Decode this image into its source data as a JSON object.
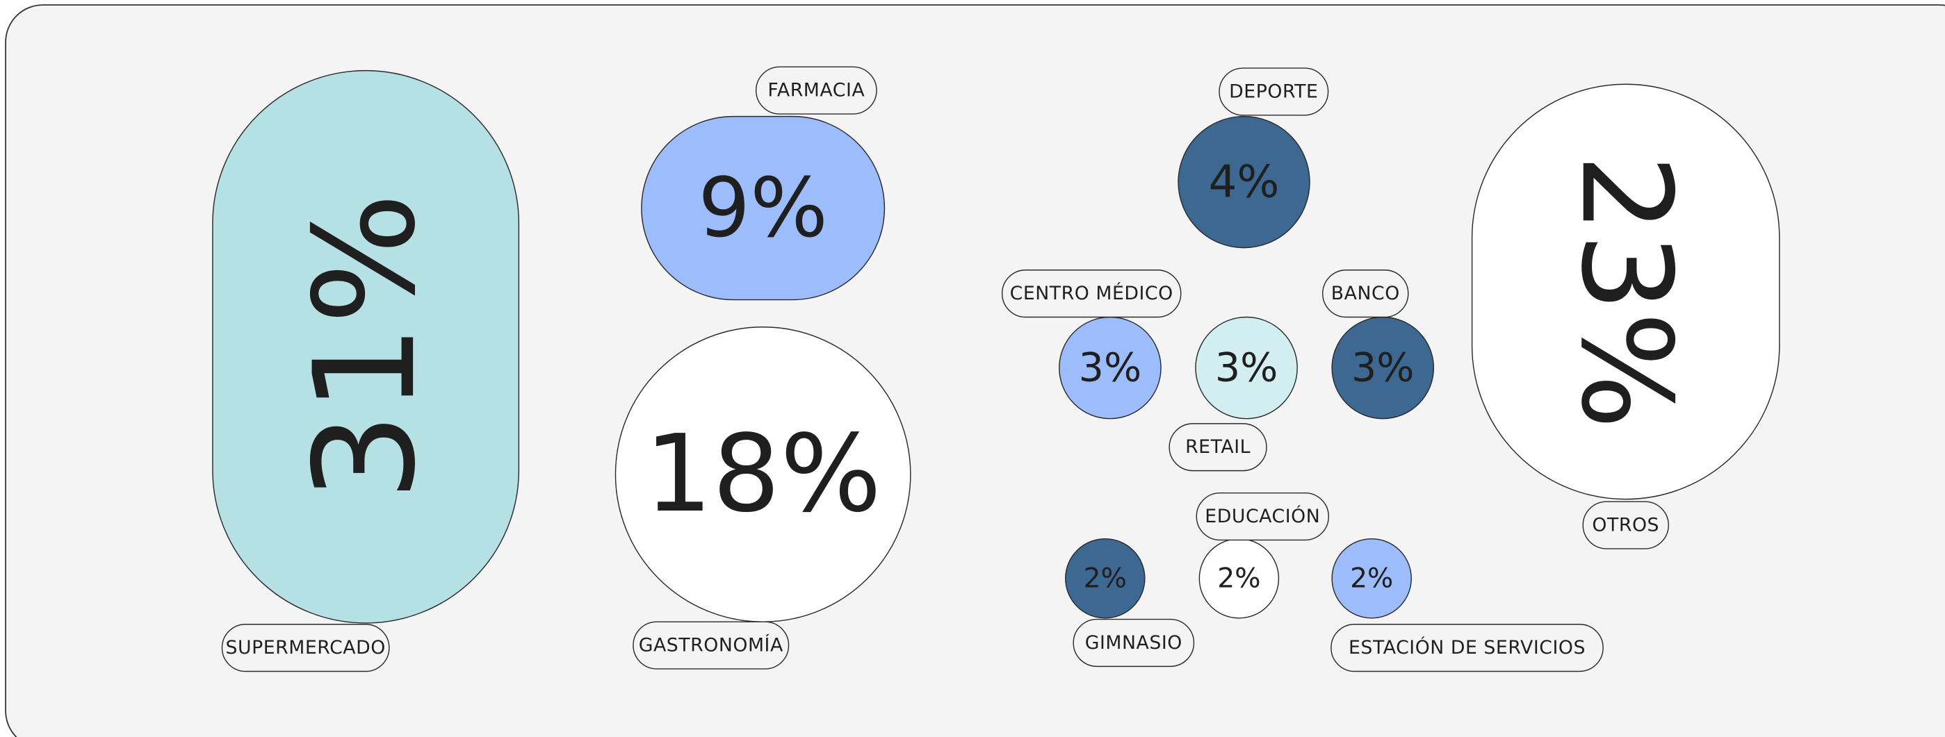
{
  "chart_data": {
    "type": "pill-bubbles",
    "categories": [
      "SUPERMERCADO",
      "FARMACIA",
      "GASTRONOMÍA",
      "DEPORTE",
      "CENTRO MÉDICO",
      "RETAIL",
      "BANCO",
      "OTROS",
      "GIMNASIO",
      "EDUCACIÓN",
      "ESTACIÓN DE SERVICIOS"
    ],
    "values": [
      31,
      9,
      18,
      4,
      3,
      3,
      3,
      23,
      2,
      2,
      2
    ],
    "value_labels": [
      "31%",
      "9%",
      "18%",
      "4%",
      "3%",
      "3%",
      "3%",
      "23%",
      "2%",
      "2%",
      "2%"
    ],
    "colors": [
      "#b5e1e5",
      "#9dbcfb",
      "#ffffff",
      "#3d6892",
      "#9dbcfb",
      "#d3eef0",
      "#3d6892",
      "#ffffff",
      "#3d6892",
      "#ffffff",
      "#9dbcfb"
    ]
  }
}
